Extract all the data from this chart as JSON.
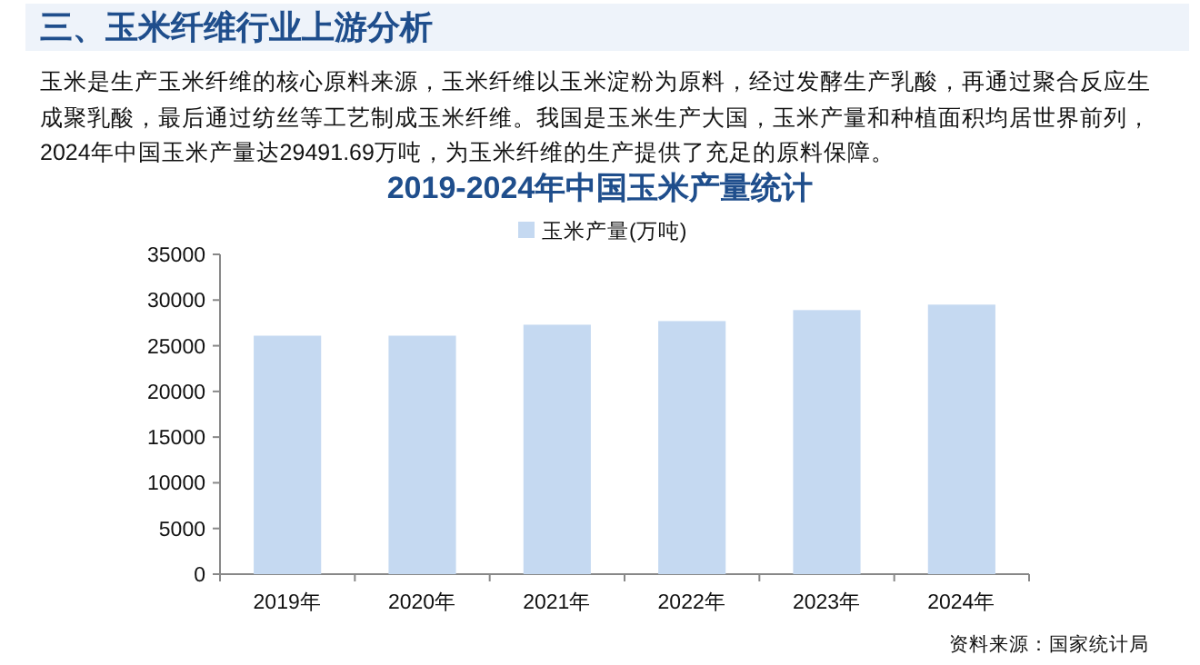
{
  "chart_data": {
    "type": "bar",
    "title": "2019-2024年中国玉米产量统计",
    "annotations": [
      "三、玉米纤维行业上游分析",
      "玉米是生产玉米纤维的核心原料来源，玉米纤维以玉米淀粉为原料，经过发酵生产乳酸，再通过聚合反应生成聚乳酸，最后通过纺丝等工艺制成玉米纤维。我国是玉米生产大国，玉米产量和种植面积均居世界前列，2024年中国玉米产量达29491.69万吨，为玉米纤维的生产提供了充足的原料保障。",
      "资料来源：国家统计局"
    ],
    "categories": [
      "2019年",
      "2020年",
      "2021年",
      "2022年",
      "2023年",
      "2024年"
    ],
    "series": [
      {
        "name": "玉米产量(万吨)",
        "color": "#c5d9f1",
        "values": [
          26100,
          26100,
          27300,
          27700,
          28900,
          29500
        ]
      }
    ],
    "ylim": [
      0,
      35000
    ],
    "yticks": [
      0,
      5000,
      10000,
      15000,
      20000,
      25000,
      30000,
      35000
    ],
    "legend": "top",
    "grid": false
  }
}
